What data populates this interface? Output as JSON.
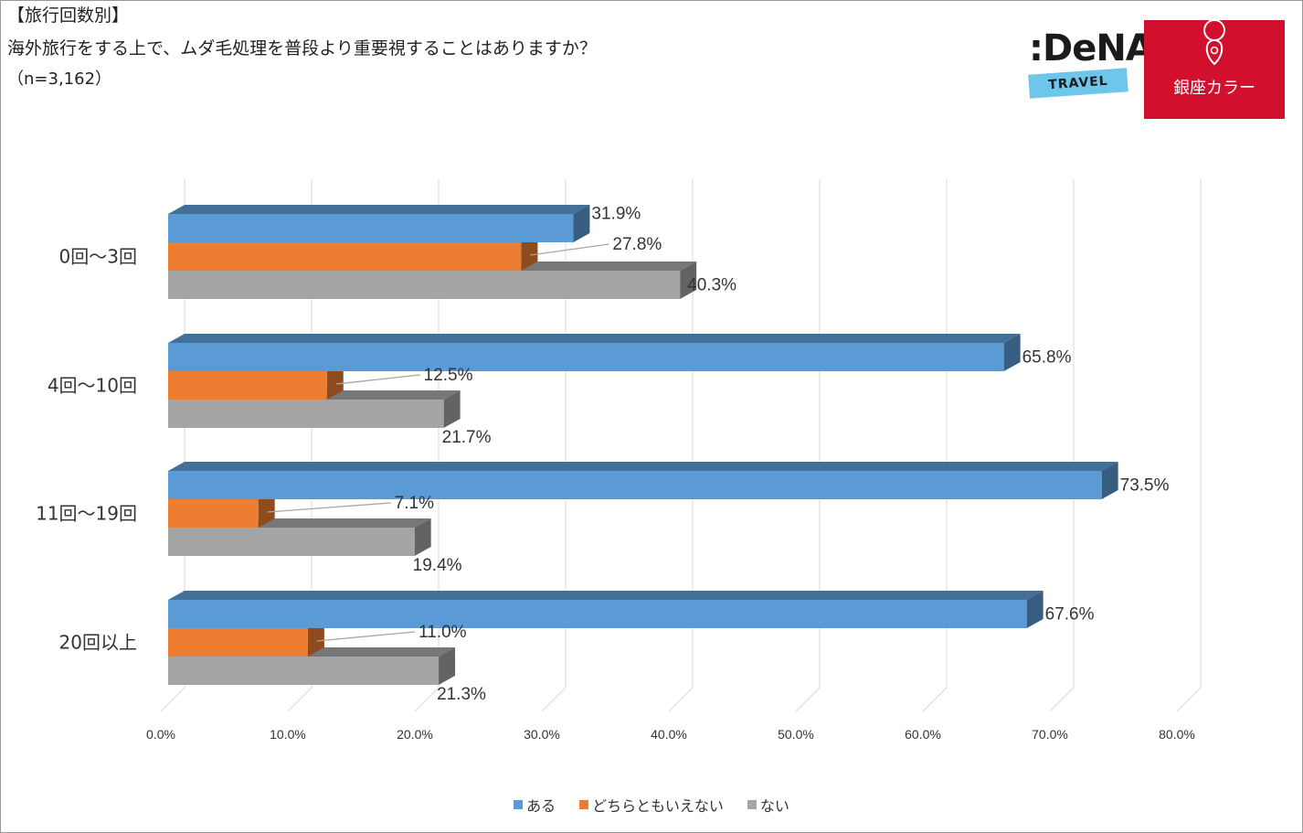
{
  "header": {
    "line1": "【旅行回数別】",
    "line2": "海外旅行をする上で、ムダ毛処理を普段より重要視することはありますか？",
    "line3": "（n=3,162）"
  },
  "logos": {
    "dena_main": ":DeNA",
    "dena_sub": "TRAVEL",
    "ginza": "銀座カラー"
  },
  "colors": {
    "series_1": "#5b9bd5",
    "series_2": "#ed7d31",
    "series_3": "#a5a5a5",
    "logo_red": "#d20f2c",
    "logo_blue": "#6ec6ea"
  },
  "chart_data": {
    "type": "bar",
    "orientation": "horizontal",
    "style": "3d",
    "title": "",
    "xlabel": "",
    "ylabel": "",
    "xlim": [
      0,
      80
    ],
    "x_ticks": [
      "0.0%",
      "10.0%",
      "20.0%",
      "30.0%",
      "40.0%",
      "50.0%",
      "60.0%",
      "70.0%",
      "80.0%"
    ],
    "grid": true,
    "legend_position": "bottom",
    "categories": [
      "0回～3回",
      "4回～10回",
      "11回～19回",
      "20回以上"
    ],
    "series": [
      {
        "name": "ある",
        "values": [
          31.9,
          65.8,
          73.5,
          67.6
        ],
        "labels": [
          "31.9%",
          "65.8%",
          "73.5%",
          "67.6%"
        ]
      },
      {
        "name": "どちらともいえない",
        "values": [
          27.8,
          12.5,
          7.1,
          11.0
        ],
        "labels": [
          "27.8%",
          "12.5%",
          "7.1%",
          "11.0%"
        ]
      },
      {
        "name": "ない",
        "values": [
          40.3,
          21.7,
          19.4,
          21.3
        ],
        "labels": [
          "40.3%",
          "21.7%",
          "19.4%",
          "21.3%"
        ]
      }
    ]
  }
}
